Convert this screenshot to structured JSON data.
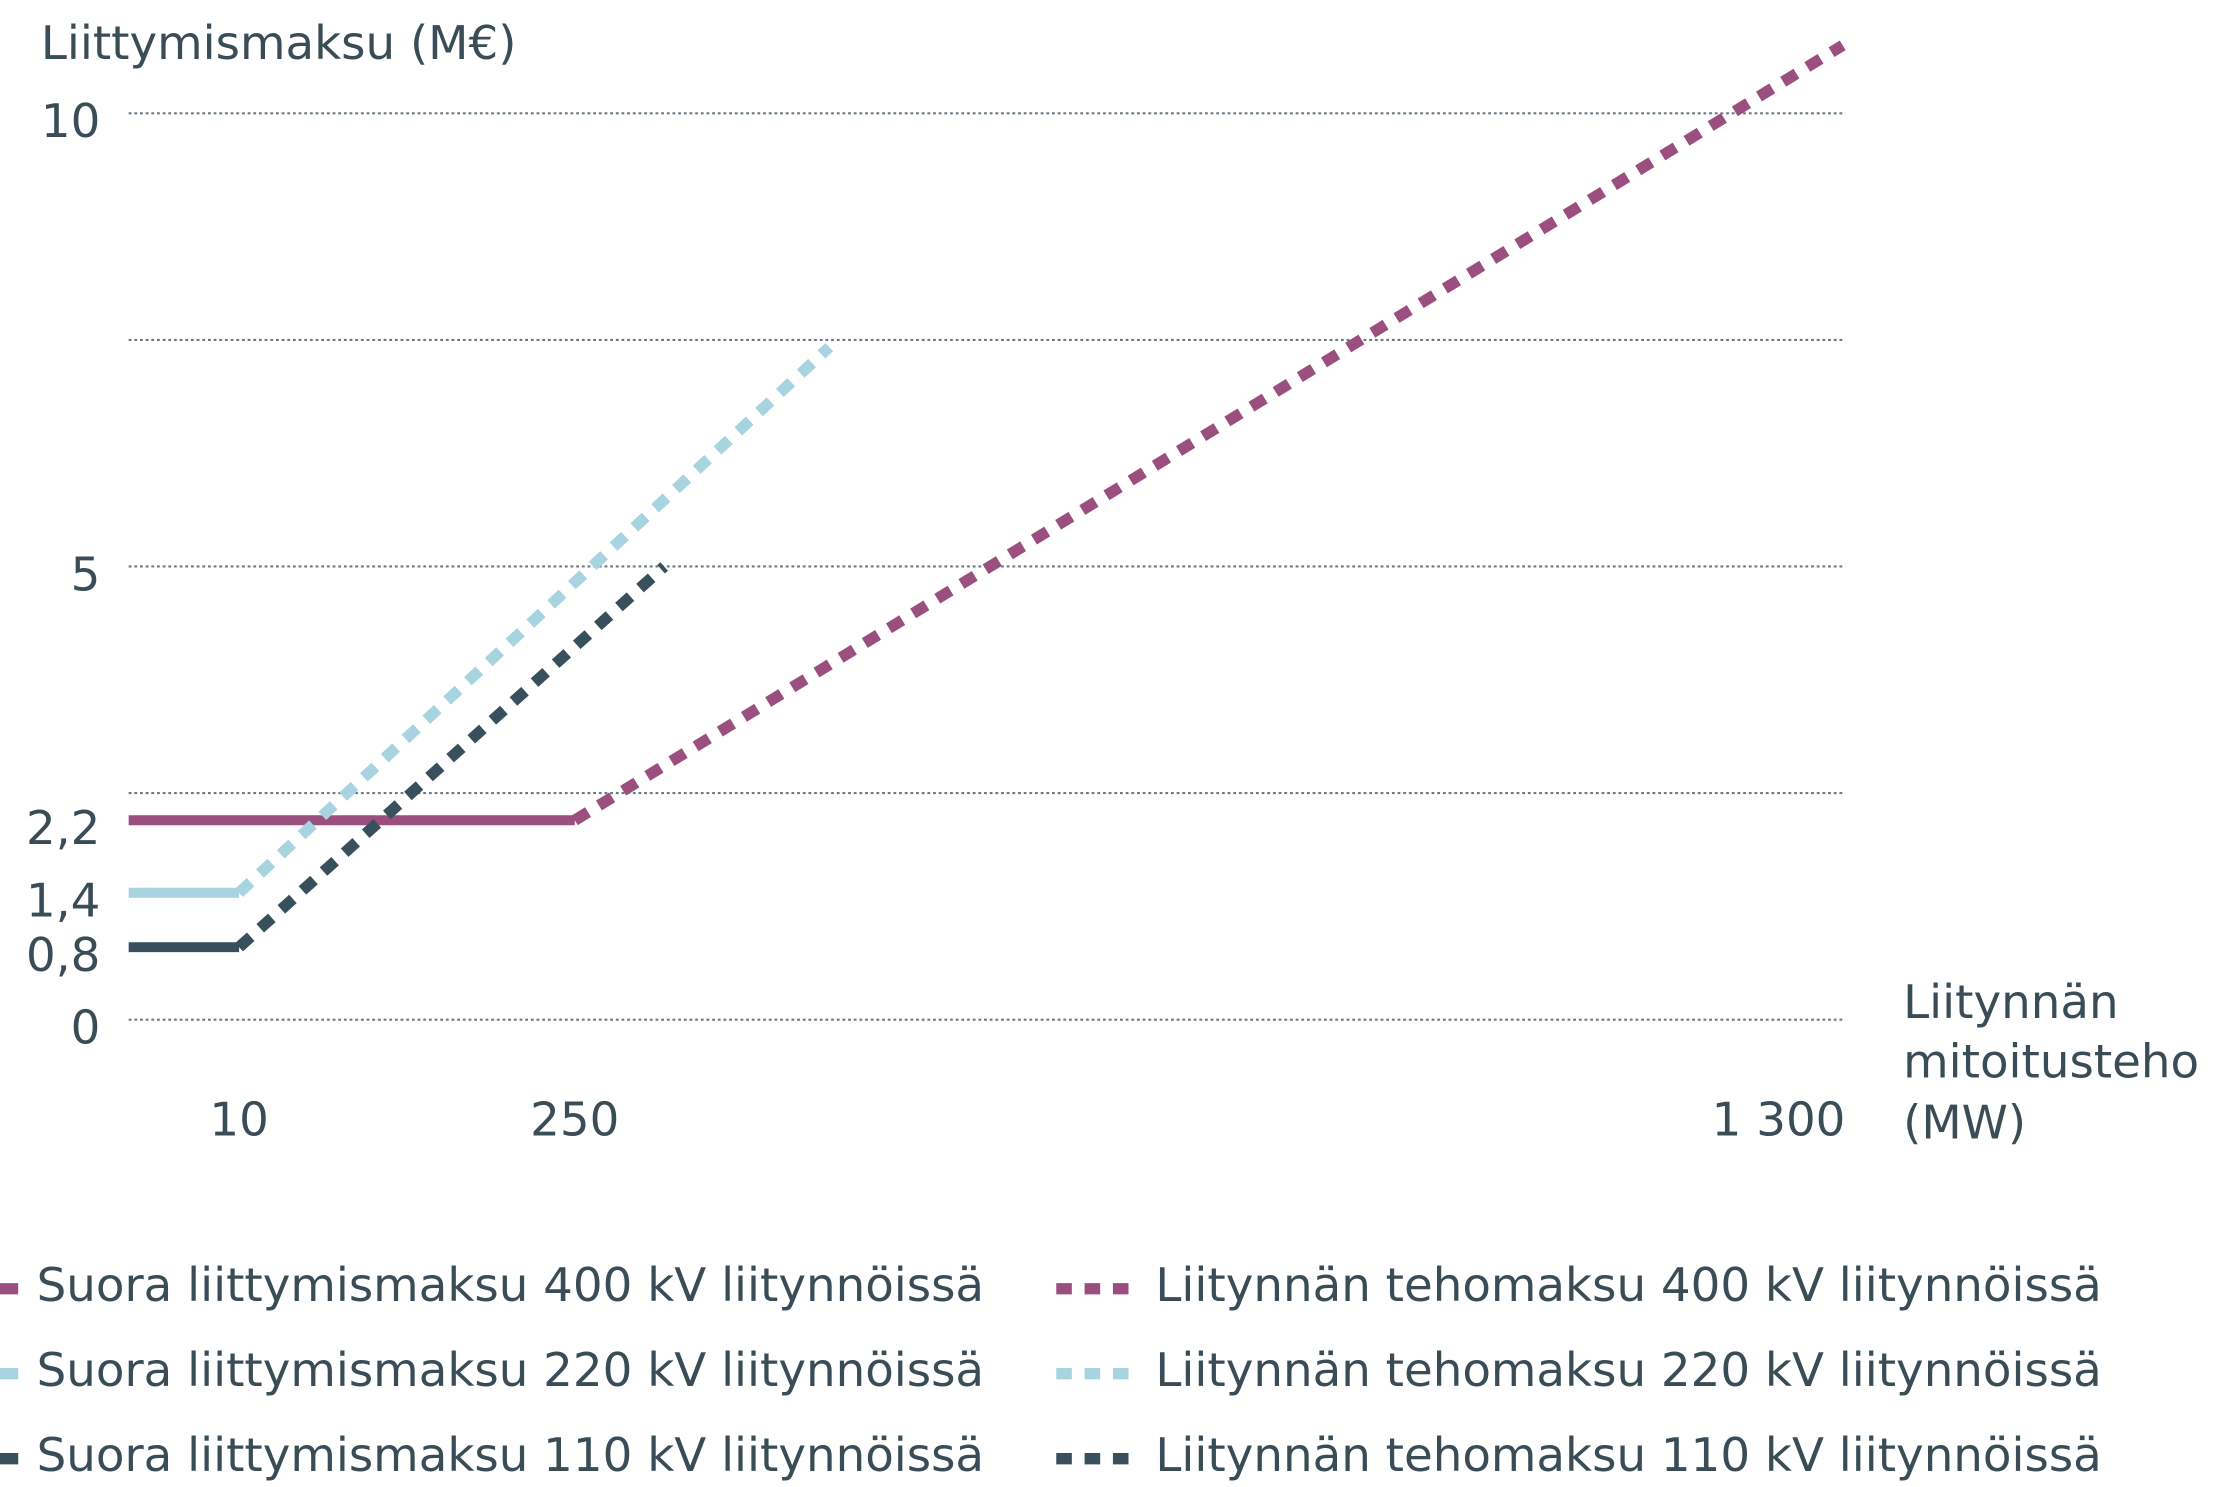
{
  "chart_data": {
    "type": "line",
    "y_label": "Liittymismaksu (M€)",
    "x_label": [
      "Liitynnän",
      "mitoitusteho",
      "(MW)"
    ],
    "xlim": [
      0,
      1300
    ],
    "xticks": [
      10,
      250,
      {
        "value": 1300,
        "label": "1 300"
      }
    ],
    "x_scale": "piecewise",
    "ylim": [
      0,
      10
    ],
    "yticks": [
      0,
      {
        "value": 0.8,
        "label": "0,8"
      },
      {
        "value": 1.4,
        "label": "1,4"
      },
      {
        "value": 2.2,
        "label": "2,2"
      },
      5,
      10
    ],
    "grid_lines": [
      0,
      2.5,
      5,
      7.5,
      10
    ],
    "series": [
      {
        "name": "Suora liittymismaksu 400 kV liitynnöissä",
        "color": "#9b4f7e",
        "dashed": false,
        "x": [
          0,
          250
        ],
        "values": [
          2.2,
          2.2
        ]
      },
      {
        "name": "Suora liittymismaksu 220 kV liitynnöissä",
        "color": "#a8d4e0",
        "dashed": false,
        "x": [
          0,
          10
        ],
        "values": [
          1.4,
          1.4
        ]
      },
      {
        "name": "Suora liittymismaksu 110 kV liitynnöissä",
        "color": "#37505c",
        "dashed": false,
        "x": [
          0,
          10
        ],
        "values": [
          0.8,
          0.8
        ]
      },
      {
        "name": "Liitynnän tehomaksu 400 kV liitynnöissä",
        "color": "#9b4f7e",
        "dashed": true,
        "x": [
          250,
          1356
        ],
        "values": [
          2.2,
          10.75
        ]
      },
      {
        "name": "Liitynnän tehomaksu 220 kV liitynnöissä",
        "color": "#a8d4e0",
        "dashed": true,
        "x": [
          10,
          472
        ],
        "values": [
          1.4,
          7.42
        ]
      },
      {
        "name": "Liitynnän tehomaksu 110 kV liitynnöissä",
        "color": "#37505c",
        "dashed": true,
        "x": [
          10,
          328
        ],
        "values": [
          0.8,
          5.0
        ]
      }
    ]
  }
}
